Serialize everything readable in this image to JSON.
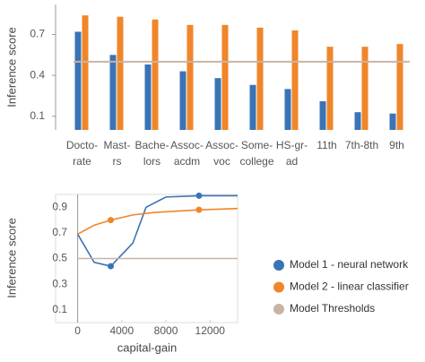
{
  "chart_data": [
    {
      "type": "bar",
      "y_label": "Inference score",
      "categories": [
        [
          "Docto-",
          "rate"
        ],
        [
          "Mast-",
          "rs"
        ],
        [
          "Bache-",
          "lors"
        ],
        [
          "Assoc-",
          "acdm"
        ],
        [
          "Assoc-",
          "voc"
        ],
        [
          "Some-",
          "college"
        ],
        [
          "HS-gr-",
          "ad"
        ],
        [
          "11th"
        ],
        [
          "7th-8th"
        ],
        [
          "9th"
        ]
      ],
      "series": [
        {
          "color": "#3a74b5",
          "values": [
            0.72,
            0.55,
            0.48,
            0.43,
            0.38,
            0.33,
            0.3,
            0.21,
            0.13,
            0.12
          ]
        },
        {
          "color": "#f0862a",
          "values": [
            0.84,
            0.83,
            0.81,
            0.77,
            0.77,
            0.75,
            0.73,
            0.61,
            0.61,
            0.63
          ]
        }
      ],
      "threshold": {
        "value": 0.5,
        "color": "#c9b4a3"
      },
      "ylim": [
        0,
        0.92
      ],
      "yticks": [
        0.1,
        0.4,
        0.7
      ]
    },
    {
      "type": "line",
      "y_label": "Inference score",
      "x_label": "capital-gain",
      "series": [
        {
          "name": "Model 1 - neural network",
          "color": "#3a74b5",
          "x": [
            0,
            1500,
            3000,
            5000,
            6200,
            8000,
            11000,
            14500
          ],
          "values": [
            0.69,
            0.47,
            0.44,
            0.62,
            0.9,
            0.98,
            0.99,
            0.99
          ],
          "highlight": {
            "x": [
              3000,
              11000
            ],
            "values": [
              0.44,
              0.99
            ]
          }
        },
        {
          "name": "Model 2 - linear classifier",
          "color": "#f0862a",
          "x": [
            0,
            1500,
            3000,
            5000,
            7000,
            11000,
            14500
          ],
          "values": [
            0.69,
            0.76,
            0.8,
            0.84,
            0.86,
            0.88,
            0.89
          ],
          "highlight": {
            "x": [
              3000,
              11000
            ],
            "values": [
              0.8,
              0.88
            ]
          }
        },
        {
          "name": "Model Thresholds",
          "color": "#c9b4a3",
          "x": [
            0,
            14500
          ],
          "values": [
            0.5,
            0.5
          ]
        }
      ],
      "xlim": [
        -2000,
        14500
      ],
      "xticks": [
        0,
        4000,
        8000,
        12000
      ],
      "ylim": [
        0,
        1
      ],
      "yticks": [
        0.1,
        0.3,
        0.5,
        0.7,
        0.9
      ]
    }
  ]
}
